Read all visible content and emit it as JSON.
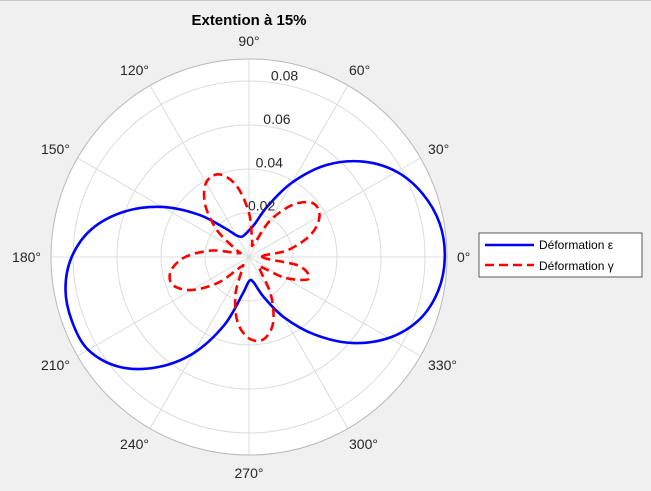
{
  "chart_data": {
    "type": "polar-line",
    "title": "Extention à 15%",
    "theta_unit": "deg",
    "theta_ticks": [
      0,
      30,
      60,
      90,
      120,
      150,
      180,
      210,
      240,
      270,
      300,
      330
    ],
    "theta_tick_labels": [
      "0°",
      "30°",
      "60°",
      "90°",
      "120°",
      "150°",
      "180°",
      "210°",
      "240°",
      "270°",
      "300°",
      "330°"
    ],
    "rlim": [
      0,
      0.09
    ],
    "r_ticks": [
      0.02,
      0.04,
      0.06,
      0.08
    ],
    "r_tick_labels": [
      "0.02",
      "0.04",
      "0.06",
      "0.08"
    ],
    "r_label_angle_deg": 80,
    "grid": true,
    "legend_position": "right",
    "series": [
      {
        "name": "Déformation ε",
        "color": "#0000ff",
        "style": "solid",
        "theta_deg": [
          0,
          10,
          20,
          30,
          40,
          50,
          60,
          70,
          80,
          90,
          100,
          110,
          120,
          130,
          140,
          150,
          160,
          170,
          180,
          190,
          200,
          210,
          220,
          230,
          240,
          250,
          260,
          270,
          280,
          290,
          300,
          310,
          320,
          330,
          340,
          350,
          360
        ],
        "r": [
          0.089,
          0.088,
          0.084,
          0.0775,
          0.0675,
          0.0545,
          0.039,
          0.0245,
          0.0153,
          0.0121,
          0.0104,
          0.0098,
          0.0113,
          0.0172,
          0.03,
          0.0455,
          0.0603,
          0.0727,
          0.0806,
          0.0847,
          0.0856,
          0.0844,
          0.0775,
          0.0655,
          0.0505,
          0.033,
          0.0172,
          0.011,
          0.0116,
          0.0192,
          0.0315,
          0.0458,
          0.0608,
          0.0735,
          0.0826,
          0.0874,
          0.089
        ]
      },
      {
        "name": "Déformation γ",
        "color": "#ff0000",
        "style": "dashed",
        "theta_deg": [
          0,
          10,
          20,
          30,
          40,
          50,
          60,
          70,
          80,
          90,
          100,
          110,
          120,
          130,
          140,
          150,
          160,
          170,
          180,
          190,
          200,
          210,
          220,
          230,
          240,
          250,
          260,
          270,
          280,
          290,
          300,
          310,
          320,
          330,
          340,
          350,
          360
        ],
        "r": [
          0.006,
          0.018,
          0.03,
          0.037,
          0.038,
          0.031,
          0.019,
          0.006,
          0.008,
          0.02,
          0.033,
          0.04,
          0.039,
          0.031,
          0.019,
          0.007,
          0.005,
          0.017,
          0.029,
          0.036,
          0.037,
          0.03,
          0.018,
          0.006,
          0.006,
          0.018,
          0.03,
          0.037,
          0.038,
          0.032,
          0.02,
          0.008,
          0.007,
          0.019,
          0.029,
          0.023,
          0.006
        ]
      }
    ]
  }
}
